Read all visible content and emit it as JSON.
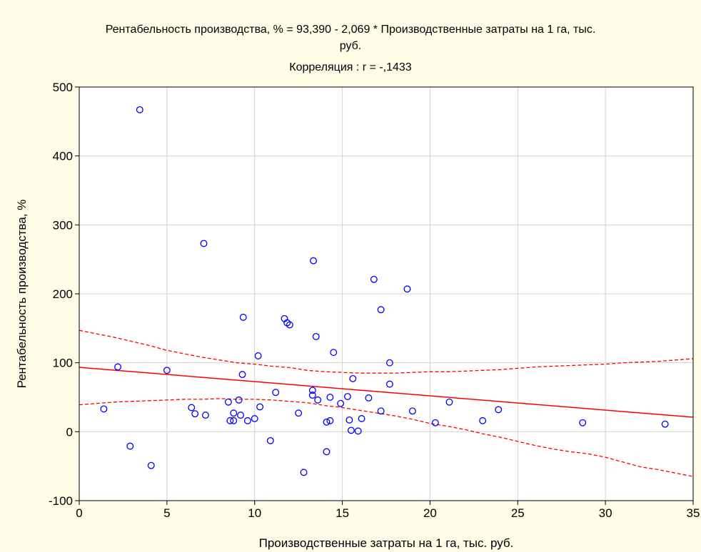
{
  "chart_data": {
    "type": "scatter",
    "title_lines": [
      "Рентабельность производства, % = 93,390 - 2,069  * Производственные затраты на 1 га, тыс.",
      "руб.",
      "Корреляция : r = -,1433"
    ],
    "xlabel": "Производственные затраты на 1 га, тыс. руб.",
    "ylabel": "Рентабельность производства, %",
    "xlim": [
      0,
      35
    ],
    "ylim": [
      -100,
      500
    ],
    "xticks": [
      0,
      5,
      10,
      15,
      20,
      25,
      30,
      35
    ],
    "yticks": [
      -100,
      0,
      100,
      200,
      300,
      400,
      500
    ],
    "grid": true,
    "colors": {
      "points": "#0000ff",
      "regression": "#ff0000",
      "confidence": "#ff0000",
      "background": "#fffce8",
      "plot_area": "#ffffff",
      "grid": "#d3d3d3"
    },
    "regression": {
      "intercept": 93.39,
      "slope": -2.069
    },
    "confidence_band": {
      "upper": [
        [
          0,
          147
        ],
        [
          1,
          142
        ],
        [
          2,
          137
        ],
        [
          3,
          131
        ],
        [
          4,
          125
        ],
        [
          5,
          118
        ],
        [
          6,
          113
        ],
        [
          7,
          108
        ],
        [
          8,
          104
        ],
        [
          9,
          100
        ],
        [
          10,
          98
        ],
        [
          11,
          95
        ],
        [
          12,
          93
        ],
        [
          13,
          89
        ],
        [
          14,
          87
        ],
        [
          15,
          86
        ],
        [
          16,
          85
        ],
        [
          17,
          85
        ],
        [
          18,
          85
        ],
        [
          19,
          86
        ],
        [
          20,
          87
        ],
        [
          21,
          87
        ],
        [
          22,
          88
        ],
        [
          23,
          89
        ],
        [
          24,
          90
        ],
        [
          25,
          92
        ],
        [
          26,
          94
        ],
        [
          27,
          95
        ],
        [
          28,
          96
        ],
        [
          29,
          97
        ],
        [
          30,
          98
        ],
        [
          31,
          100
        ],
        [
          32,
          101
        ],
        [
          33,
          102
        ],
        [
          34,
          104
        ],
        [
          35,
          106
        ]
      ],
      "lower": [
        [
          0,
          39
        ],
        [
          1,
          41
        ],
        [
          2,
          43
        ],
        [
          3,
          44
        ],
        [
          4,
          45
        ],
        [
          5,
          46
        ],
        [
          6,
          47
        ],
        [
          7,
          47
        ],
        [
          8,
          48
        ],
        [
          9,
          47
        ],
        [
          10,
          47
        ],
        [
          11,
          46
        ],
        [
          12,
          44
        ],
        [
          13,
          42
        ],
        [
          14,
          38
        ],
        [
          15,
          35
        ],
        [
          16,
          31
        ],
        [
          17,
          27
        ],
        [
          18,
          23
        ],
        [
          19,
          18
        ],
        [
          20,
          12
        ],
        [
          21,
          8
        ],
        [
          22,
          3
        ],
        [
          23,
          -3
        ],
        [
          24,
          -8
        ],
        [
          25,
          -14
        ],
        [
          26,
          -20
        ],
        [
          27,
          -25
        ],
        [
          28,
          -29
        ],
        [
          29,
          -32
        ],
        [
          30,
          -37
        ],
        [
          31,
          -44
        ],
        [
          32,
          -51
        ],
        [
          33,
          -55
        ],
        [
          34,
          -60
        ],
        [
          35,
          -65
        ]
      ]
    },
    "points": [
      {
        "x": 3.45,
        "y": 467
      },
      {
        "x": 7.1,
        "y": 273
      },
      {
        "x": 13.35,
        "y": 248
      },
      {
        "x": 16.8,
        "y": 221
      },
      {
        "x": 18.7,
        "y": 207
      },
      {
        "x": 17.2,
        "y": 177
      },
      {
        "x": 9.35,
        "y": 166
      },
      {
        "x": 11.7,
        "y": 164
      },
      {
        "x": 11.85,
        "y": 158
      },
      {
        "x": 12.0,
        "y": 155
      },
      {
        "x": 13.5,
        "y": 138
      },
      {
        "x": 14.5,
        "y": 115
      },
      {
        "x": 10.2,
        "y": 110
      },
      {
        "x": 17.7,
        "y": 100
      },
      {
        "x": 2.2,
        "y": 94
      },
      {
        "x": 5.0,
        "y": 89
      },
      {
        "x": 9.3,
        "y": 83
      },
      {
        "x": 15.6,
        "y": 77
      },
      {
        "x": 17.7,
        "y": 69
      },
      {
        "x": 13.3,
        "y": 60
      },
      {
        "x": 11.2,
        "y": 57
      },
      {
        "x": 13.3,
        "y": 53
      },
      {
        "x": 15.3,
        "y": 51
      },
      {
        "x": 14.3,
        "y": 50
      },
      {
        "x": 16.5,
        "y": 49
      },
      {
        "x": 9.1,
        "y": 46
      },
      {
        "x": 13.6,
        "y": 46
      },
      {
        "x": 8.5,
        "y": 43
      },
      {
        "x": 21.1,
        "y": 43
      },
      {
        "x": 14.9,
        "y": 41
      },
      {
        "x": 10.3,
        "y": 36
      },
      {
        "x": 6.4,
        "y": 35
      },
      {
        "x": 1.4,
        "y": 33
      },
      {
        "x": 23.9,
        "y": 32
      },
      {
        "x": 17.2,
        "y": 30
      },
      {
        "x": 19.0,
        "y": 30
      },
      {
        "x": 8.8,
        "y": 27
      },
      {
        "x": 12.5,
        "y": 27
      },
      {
        "x": 6.6,
        "y": 26
      },
      {
        "x": 9.2,
        "y": 24
      },
      {
        "x": 7.2,
        "y": 24
      },
      {
        "x": 10.0,
        "y": 19
      },
      {
        "x": 16.1,
        "y": 19
      },
      {
        "x": 15.4,
        "y": 17
      },
      {
        "x": 9.6,
        "y": 16
      },
      {
        "x": 8.6,
        "y": 16
      },
      {
        "x": 8.8,
        "y": 16
      },
      {
        "x": 14.3,
        "y": 16
      },
      {
        "x": 23.0,
        "y": 16
      },
      {
        "x": 14.1,
        "y": 14
      },
      {
        "x": 20.3,
        "y": 13
      },
      {
        "x": 28.7,
        "y": 13
      },
      {
        "x": 33.4,
        "y": 11
      },
      {
        "x": 15.5,
        "y": 2
      },
      {
        "x": 15.9,
        "y": 1
      },
      {
        "x": 10.9,
        "y": -13
      },
      {
        "x": 2.9,
        "y": -21
      },
      {
        "x": 14.1,
        "y": -29
      },
      {
        "x": 4.1,
        "y": -49
      },
      {
        "x": 12.8,
        "y": -59
      }
    ]
  }
}
